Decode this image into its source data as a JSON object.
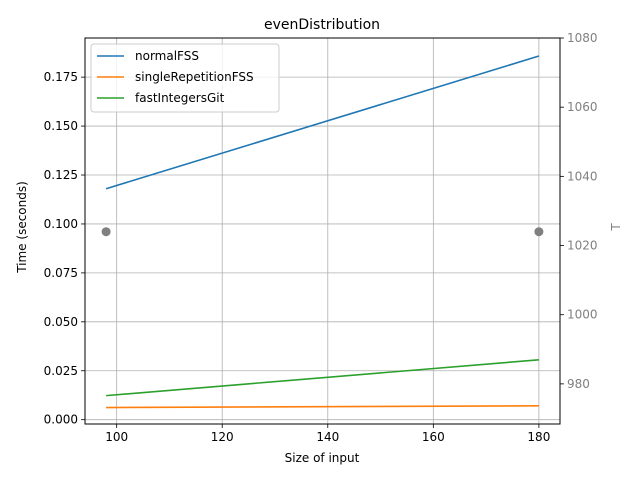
{
  "chart_data": {
    "type": "line",
    "title": "evenDistribution",
    "xlabel": "Size of input",
    "ylabel": "Time (seconds)",
    "y2label": "T",
    "xlim": [
      94,
      184
    ],
    "ylim": [
      -0.0022,
      0.195
    ],
    "y2lim": [
      968.4,
      1080
    ],
    "x_ticks": [
      100,
      120,
      140,
      160,
      180
    ],
    "y_ticks": [
      0.0,
      0.025,
      0.05,
      0.075,
      0.1,
      0.125,
      0.15,
      0.175
    ],
    "y_tick_labels": [
      "0.000",
      "0.025",
      "0.050",
      "0.075",
      "0.100",
      "0.125",
      "0.150",
      "0.175"
    ],
    "y2_ticks": [
      980,
      1000,
      1020,
      1040,
      1060,
      1080
    ],
    "grid": true,
    "legend_position": "top-left",
    "series": [
      {
        "name": "normalFSS",
        "color": "#1f77b4",
        "x": [
          98,
          180
        ],
        "y": [
          0.118,
          0.1858
        ]
      },
      {
        "name": "singleRepetitionFSS",
        "color": "#ff7f0e",
        "x": [
          98,
          180
        ],
        "y": [
          0.0062,
          0.0071
        ]
      },
      {
        "name": "fastIntegersGit",
        "color": "#2ca02c",
        "x": [
          98,
          180
        ],
        "y": [
          0.0123,
          0.0306
        ]
      }
    ],
    "secondary_points": {
      "color": "#808080",
      "x": [
        98,
        180
      ],
      "y": [
        1024,
        1024
      ]
    }
  }
}
